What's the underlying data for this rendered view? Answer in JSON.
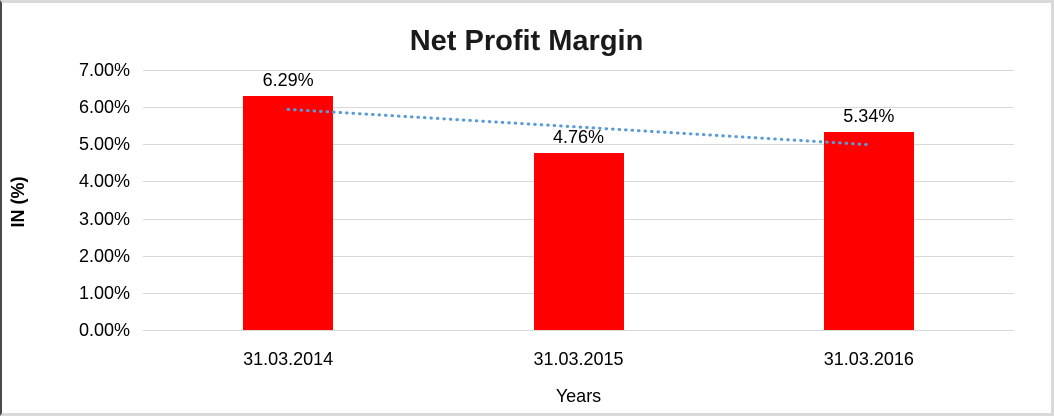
{
  "chart_data": {
    "type": "bar",
    "title": "Net Profit Margin",
    "xlabel": "Years",
    "ylabel": "IN (%)",
    "categories": [
      "31.03.2014",
      "31.03.2015",
      "31.03.2016"
    ],
    "values": [
      6.29,
      4.76,
      5.34
    ],
    "data_labels": [
      "6.29%",
      "4.76%",
      "5.34%"
    ],
    "ylim": [
      0,
      7
    ],
    "ytick_step": 1,
    "ytick_labels": [
      "0.00%",
      "1.00%",
      "2.00%",
      "3.00%",
      "4.00%",
      "5.00%",
      "6.00%",
      "7.00%"
    ],
    "grid": true,
    "legend": "none",
    "bar_color": "#ff0000",
    "gridline_color": "#d9d9d9",
    "trendline": {
      "type": "linear",
      "style": "dotted",
      "color": "#5b9bd5",
      "start_value": 5.94,
      "end_value": 4.99
    }
  }
}
